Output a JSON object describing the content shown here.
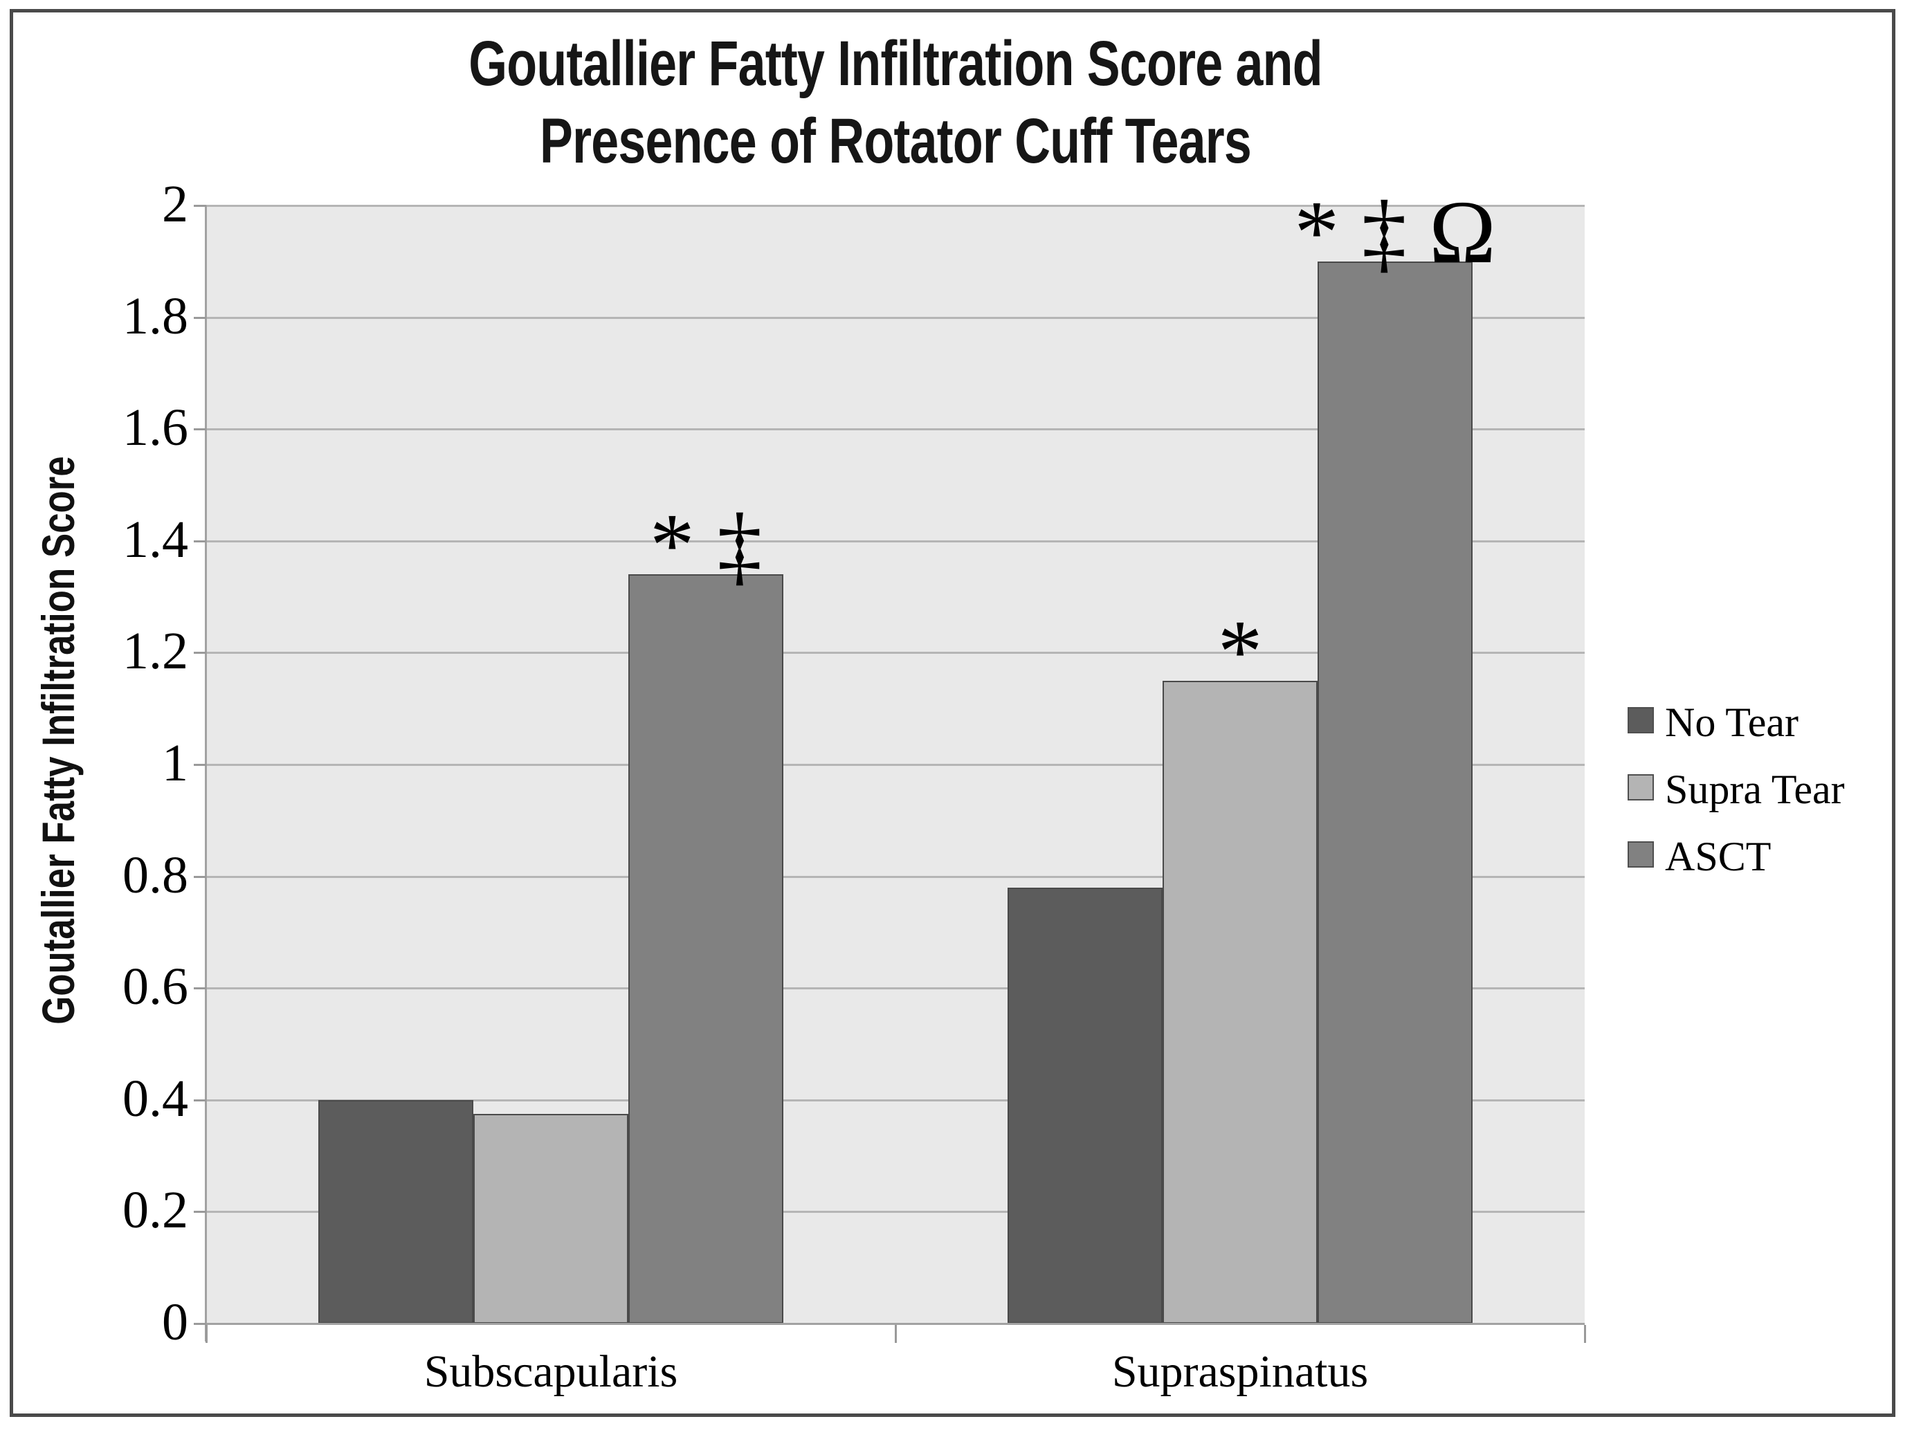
{
  "chart_data": {
    "type": "bar",
    "title": "Goutallier Fatty Infiltration Score and Presence of Rotator Cuff Tears",
    "title_lines": [
      "Goutallier Fatty Infiltration Score and",
      "Presence of Rotator Cuff Tears"
    ],
    "categories": [
      "Subscapularis",
      "Supraspinatus"
    ],
    "series": [
      {
        "name": "No Tear",
        "values": [
          0.4,
          0.78
        ],
        "color": "#5c5c5c"
      },
      {
        "name": "Supra Tear",
        "values": [
          0.375,
          1.15
        ],
        "color": "#b4b4b4"
      },
      {
        "name": "ASCT",
        "values": [
          1.34,
          1.9
        ],
        "color": "#818181"
      }
    ],
    "annotations": [
      {
        "category": 0,
        "series": 2,
        "text": "* ‡"
      },
      {
        "category": 1,
        "series": 1,
        "text": "*"
      },
      {
        "category": 1,
        "series": 2,
        "text": "* ‡ Ω"
      }
    ],
    "xlabel": "",
    "ylabel": "Goutallier Fatty Infiltration Score",
    "ylim": [
      0,
      2
    ],
    "ytick_step": 0.2,
    "yticks": [
      "2",
      "1.8",
      "1.6",
      "1.4",
      "1.2",
      "1",
      "0.8",
      "0.6",
      "0.4",
      "0.2",
      "0"
    ],
    "grid": true,
    "legend_position": "right",
    "plot_background": "#e9e9e9",
    "gridline_color": "#b5b5b5",
    "axis_color": "#a2a2a2",
    "bar_border_color": "#4a4a4a",
    "figure_border_color": "#4a4a4a"
  }
}
